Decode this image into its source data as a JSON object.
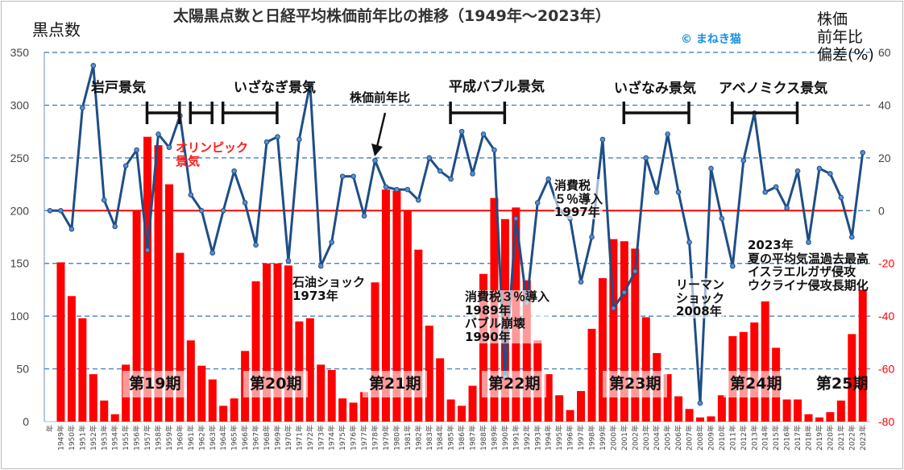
{
  "title": "太陽黒点数と日経平均株価前年比の推移（1949年～2023年）",
  "left_axis_title": "黒点数",
  "right_axis_title": [
    "株価",
    "前年比",
    "偏差(%)"
  ],
  "copyright": "© まねき猫",
  "colors": {
    "bars": "#ff0000",
    "line": "#1f4e86",
    "zero_line": "#ff0000",
    "grid": "#2e75b6",
    "negative_ticks": "#ff0000"
  },
  "annotations": {
    "iwato": "岩戸景気",
    "olympic": "オリンピック\n景気",
    "izanagi": "いざなぎ景気",
    "line_label": "株価前年比",
    "heisei": "平成バブル景気",
    "izanami": "いざなみ景気",
    "abenomics": "アベノミクス景気",
    "oil": "石油ショック\n1973年",
    "tax3": "消費税３％導入\n1989年\nバブル崩壊\n1990年",
    "tax5": "消費税\n５％導入\n1997年",
    "lehman": "リーマン\nショック\n2008年",
    "y2023": "2023年\n夏の平均気温過去最高\nイスラエルガザ侵攻\nウクライナ侵攻長期化"
  },
  "cycles": [
    "第19期",
    "第20期",
    "第21期",
    "第22期",
    "第23期",
    "第24期",
    "第25期"
  ],
  "chart_data": {
    "type": "bar+line",
    "title": "太陽黒点数と日経平均株価前年比の推移（1949年～2023年）",
    "categories": [
      "年",
      "1949年",
      "1950年",
      "1951年",
      "1952年",
      "1953年",
      "1954年",
      "1955年",
      "1956年",
      "1957年",
      "1958年",
      "1959年",
      "1960年",
      "1961年",
      "1962年",
      "1963年",
      "1964年",
      "1965年",
      "1966年",
      "1967年",
      "1968年",
      "1969年",
      "1970年",
      "1971年",
      "1972年",
      "1973年",
      "1974年",
      "1975年",
      "1976年",
      "1977年",
      "1978年",
      "1979年",
      "1980年",
      "1981年",
      "1982年",
      "1983年",
      "1984年",
      "1985年",
      "1986年",
      "1987年",
      "1988年",
      "1989年",
      "1990年",
      "1991年",
      "1992年",
      "1993年",
      "1994年",
      "1995年",
      "1996年",
      "1997年",
      "1998年",
      "1999年",
      "2000年",
      "2001年",
      "2002年",
      "2003年",
      "2004年",
      "2005年",
      "2006年",
      "2007年",
      "2008年",
      "2009年",
      "2010年",
      "2011年",
      "2012年",
      "2013年",
      "2014年",
      "2015年",
      "2016年",
      "2017年",
      "2018年",
      "2019年",
      "2020年",
      "2021年",
      "2022年",
      "2023年"
    ],
    "series": [
      {
        "axis": "left",
        "type": "bar",
        "values": [
          null,
          151,
          119,
          98,
          45,
          20,
          7,
          54,
          200,
          270,
          262,
          225,
          160,
          77,
          53,
          40,
          15,
          22,
          67,
          133,
          150,
          150,
          148,
          95,
          98,
          54,
          49,
          22,
          18,
          28,
          132,
          220,
          219,
          200,
          163,
          91,
          60,
          21,
          15,
          34,
          140,
          212,
          192,
          203,
          134,
          77,
          45,
          25,
          11,
          29,
          88,
          136,
          173,
          171,
          164,
          99,
          65,
          45,
          24,
          12,
          4,
          5,
          25,
          81,
          85,
          94,
          114,
          70,
          21,
          21,
          7,
          4,
          9,
          20,
          83,
          125
        ]
      },
      {
        "name": "株価前年比",
        "axis": "right",
        "type": "line",
        "values": [
          0,
          0,
          -7,
          39,
          55,
          4,
          -6,
          17,
          23,
          -15,
          29,
          24,
          36,
          6,
          0,
          -16,
          0,
          15,
          3,
          -13,
          26,
          28,
          -19,
          27,
          48,
          -21,
          -12,
          13,
          13,
          -2,
          19,
          9,
          8,
          8,
          4,
          20,
          15,
          12,
          30,
          14,
          29,
          23,
          -63,
          -3,
          -35,
          3,
          12,
          0,
          -3,
          -27,
          -10,
          27,
          -37,
          -31,
          -23,
          20,
          7,
          29,
          7,
          -12,
          -73,
          16,
          -3,
          -21,
          19,
          37,
          7,
          9,
          1,
          15,
          -12,
          16,
          14,
          5,
          -10,
          22
        ]
      }
    ],
    "left_axis": {
      "ylim": [
        0,
        350
      ],
      "ticks": [
        0,
        50,
        100,
        150,
        200,
        250,
        300,
        350
      ]
    },
    "right_axis": {
      "ylim": [
        -80,
        60
      ],
      "ticks": [
        -80,
        -60,
        -40,
        -20,
        0,
        20,
        40,
        60
      ]
    },
    "grid": true,
    "periods": [
      {
        "label": "岩戸景気",
        "start": "1958年",
        "end": "1961年"
      },
      {
        "label": "オリンピック景気",
        "start": "1962年",
        "end": "1964年"
      },
      {
        "label": "いざなぎ景気",
        "start": "1965年",
        "end": "1970年"
      },
      {
        "label": "平成バブル景気",
        "start": "1986年",
        "end": "1991年"
      },
      {
        "label": "いざなみ景気",
        "start": "2002年",
        "end": "2008年"
      },
      {
        "label": "アベノミクス景気",
        "start": "2012年",
        "end": "2018年"
      }
    ]
  }
}
